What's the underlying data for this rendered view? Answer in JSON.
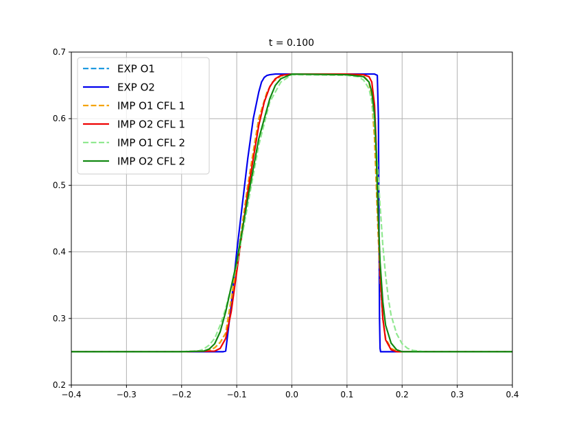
{
  "chart_data": {
    "type": "line",
    "title": "t = 0.100",
    "xlabel": "",
    "ylabel": "",
    "xlim": [
      -0.4,
      0.4
    ],
    "ylim": [
      0.2,
      0.7
    ],
    "xticks": [
      -0.4,
      -0.3,
      -0.2,
      -0.1,
      0.0,
      0.1,
      0.2,
      0.3,
      0.4
    ],
    "xtick_labels": [
      "−0.4",
      "−0.3",
      "−0.2",
      "−0.1",
      "0.0",
      "0.1",
      "0.2",
      "0.3",
      "0.4"
    ],
    "yticks": [
      0.2,
      0.3,
      0.4,
      0.5,
      0.6,
      0.7
    ],
    "ytick_labels": [
      "0.2",
      "0.3",
      "0.4",
      "0.5",
      "0.6",
      "0.7"
    ],
    "grid": true,
    "legend_position": "top-left",
    "series": [
      {
        "name": "EXP O1",
        "color": "#1f9ae0",
        "dash": "dashed",
        "x": [
          -0.4,
          -0.2,
          -0.15,
          -0.14,
          -0.13,
          -0.12,
          -0.1,
          -0.08,
          -0.06,
          -0.045,
          -0.035,
          -0.02,
          0.0,
          0.1,
          0.13,
          0.14,
          0.145,
          0.15,
          0.155,
          0.16,
          0.165,
          0.17,
          0.18,
          0.19,
          0.2,
          0.22,
          0.4
        ],
        "y": [
          0.25,
          0.25,
          0.252,
          0.256,
          0.264,
          0.278,
          0.38,
          0.5,
          0.6,
          0.64,
          0.655,
          0.664,
          0.667,
          0.666,
          0.664,
          0.655,
          0.63,
          0.57,
          0.46,
          0.36,
          0.3,
          0.27,
          0.255,
          0.251,
          0.25,
          0.25,
          0.25
        ]
      },
      {
        "name": "EXP O2",
        "color": "#0000ee",
        "dash": "solid",
        "x": [
          -0.4,
          -0.2,
          -0.125,
          -0.12,
          -0.11,
          -0.1,
          -0.09,
          -0.08,
          -0.07,
          -0.06,
          -0.055,
          -0.05,
          -0.045,
          -0.04,
          -0.03,
          0.0,
          0.1,
          0.15,
          0.155,
          0.157,
          0.158,
          0.159,
          0.16,
          0.161,
          0.163,
          0.2,
          0.4
        ],
        "y": [
          0.25,
          0.25,
          0.25,
          0.251,
          0.32,
          0.4,
          0.47,
          0.54,
          0.6,
          0.64,
          0.655,
          0.662,
          0.665,
          0.666,
          0.667,
          0.667,
          0.667,
          0.667,
          0.665,
          0.6,
          0.45,
          0.3,
          0.255,
          0.25,
          0.25,
          0.25,
          0.25
        ]
      },
      {
        "name": "IMP O1 CFL 1",
        "color": "#f5a300",
        "dash": "dashed",
        "x": [
          -0.4,
          -0.2,
          -0.15,
          -0.14,
          -0.13,
          -0.12,
          -0.1,
          -0.08,
          -0.06,
          -0.045,
          -0.035,
          -0.02,
          0.0,
          0.1,
          0.13,
          0.14,
          0.145,
          0.15,
          0.155,
          0.16,
          0.165,
          0.17,
          0.18,
          0.19,
          0.2,
          0.22,
          0.4
        ],
        "y": [
          0.25,
          0.25,
          0.252,
          0.256,
          0.264,
          0.278,
          0.38,
          0.5,
          0.6,
          0.64,
          0.655,
          0.664,
          0.667,
          0.666,
          0.664,
          0.655,
          0.63,
          0.57,
          0.46,
          0.36,
          0.3,
          0.27,
          0.255,
          0.251,
          0.25,
          0.25,
          0.25
        ]
      },
      {
        "name": "IMP O2 CFL 1",
        "color": "#ee0000",
        "dash": "solid",
        "x": [
          -0.4,
          -0.2,
          -0.14,
          -0.13,
          -0.12,
          -0.11,
          -0.1,
          -0.08,
          -0.06,
          -0.05,
          -0.04,
          -0.03,
          -0.02,
          0.0,
          0.1,
          0.13,
          0.14,
          0.145,
          0.15,
          0.153,
          0.156,
          0.16,
          0.165,
          0.17,
          0.18,
          0.19,
          0.2,
          0.4
        ],
        "y": [
          0.25,
          0.25,
          0.251,
          0.255,
          0.27,
          0.31,
          0.37,
          0.49,
          0.59,
          0.625,
          0.648,
          0.66,
          0.665,
          0.667,
          0.667,
          0.666,
          0.663,
          0.655,
          0.62,
          0.56,
          0.47,
          0.37,
          0.3,
          0.268,
          0.253,
          0.25,
          0.25,
          0.25
        ]
      },
      {
        "name": "IMP O1 CFL 2",
        "color": "#90e890",
        "dash": "dashed",
        "x": [
          -0.4,
          -0.2,
          -0.17,
          -0.16,
          -0.15,
          -0.14,
          -0.13,
          -0.12,
          -0.1,
          -0.08,
          -0.06,
          -0.04,
          -0.02,
          0.0,
          0.1,
          0.12,
          0.13,
          0.14,
          0.145,
          0.15,
          0.155,
          0.16,
          0.165,
          0.17,
          0.175,
          0.18,
          0.19,
          0.2,
          0.21,
          0.22,
          0.24,
          0.4
        ],
        "y": [
          0.25,
          0.25,
          0.251,
          0.254,
          0.26,
          0.27,
          0.29,
          0.315,
          0.38,
          0.47,
          0.56,
          0.625,
          0.655,
          0.666,
          0.665,
          0.663,
          0.658,
          0.645,
          0.625,
          0.59,
          0.535,
          0.47,
          0.41,
          0.365,
          0.33,
          0.305,
          0.277,
          0.262,
          0.255,
          0.252,
          0.25,
          0.25
        ]
      },
      {
        "name": "IMP O2 CFL 2",
        "color": "#118811",
        "dash": "solid",
        "x": [
          -0.4,
          -0.2,
          -0.16,
          -0.15,
          -0.14,
          -0.13,
          -0.12,
          -0.1,
          -0.08,
          -0.06,
          -0.04,
          -0.03,
          -0.02,
          0.0,
          0.1,
          0.13,
          0.14,
          0.145,
          0.15,
          0.153,
          0.156,
          0.16,
          0.165,
          0.17,
          0.18,
          0.19,
          0.2,
          0.21,
          0.4
        ],
        "y": [
          0.25,
          0.25,
          0.251,
          0.254,
          0.262,
          0.28,
          0.31,
          0.385,
          0.48,
          0.57,
          0.63,
          0.65,
          0.66,
          0.667,
          0.666,
          0.663,
          0.655,
          0.64,
          0.605,
          0.55,
          0.47,
          0.385,
          0.325,
          0.29,
          0.263,
          0.253,
          0.25,
          0.25,
          0.25
        ]
      }
    ]
  }
}
